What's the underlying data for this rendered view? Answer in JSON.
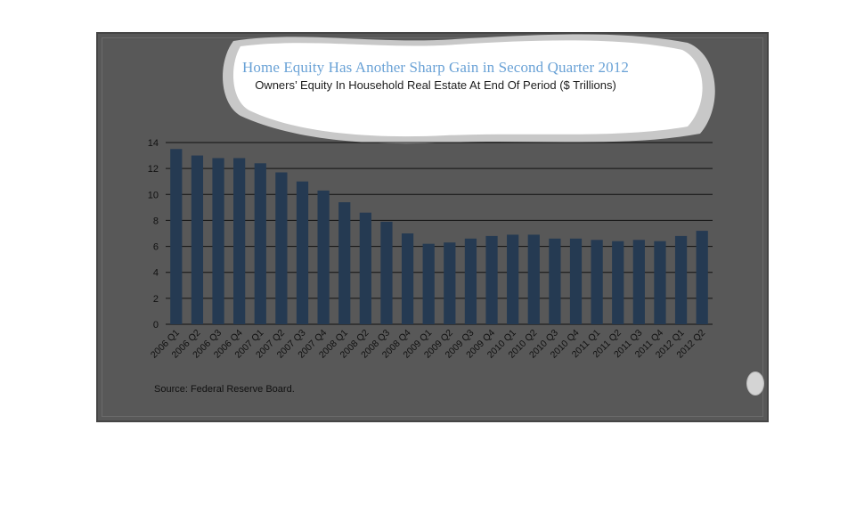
{
  "chart_data": {
    "type": "bar",
    "title": "Home Equity Has Another Sharp Gain in Second Quarter 2012",
    "subtitle": "Owners’ Equity In Household Real Estate At End Of Period ($ Trillions)",
    "categories": [
      "2006 Q1",
      "2006 Q2",
      "2006 Q3",
      "2006 Q4",
      "2007 Q1",
      "2007 Q2",
      "2007 Q3",
      "2007 Q4",
      "2008 Q1",
      "2008 Q2",
      "2008 Q3",
      "2008 Q4",
      "2009 Q1",
      "2009 Q2",
      "2009 Q3",
      "2009 Q4",
      "2010 Q1",
      "2010 Q2",
      "2010 Q3",
      "2010 Q4",
      "2011 Q1",
      "2011 Q2",
      "2011 Q3",
      "2011 Q4",
      "2012 Q1",
      "2012 Q2"
    ],
    "values": [
      13.5,
      13.0,
      12.8,
      12.8,
      12.4,
      11.7,
      11.0,
      10.3,
      9.4,
      8.6,
      7.9,
      7.0,
      6.2,
      6.3,
      6.6,
      6.8,
      6.9,
      6.9,
      6.6,
      6.6,
      6.5,
      6.4,
      6.5,
      6.4,
      6.8,
      7.2
    ],
    "ylim": [
      0,
      14
    ],
    "yticks": [
      0,
      2,
      4,
      6,
      8,
      10,
      12,
      14
    ],
    "grid": true,
    "xlabel": "",
    "ylabel": "",
    "bar_color": "#253a52",
    "source": "Source:  Federal Reserve Board."
  },
  "colors": {
    "panel_background": "#585858",
    "title": "#6aa2d6",
    "title_cloud": "#ffffff"
  }
}
